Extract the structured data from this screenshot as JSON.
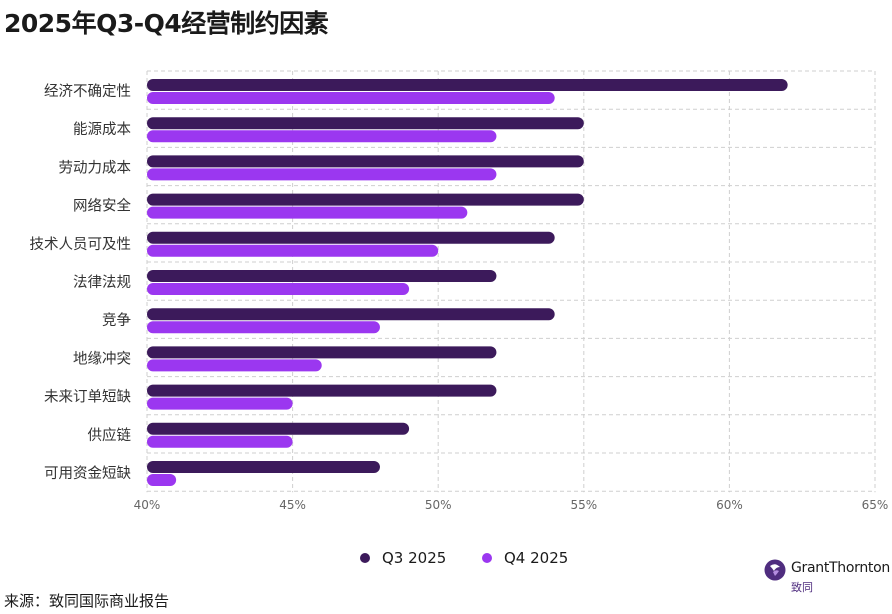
{
  "title": "2025年Q3-Q4经营制约因素",
  "source": "来源：致同国际商业报告",
  "logo": {
    "name": "GrantThornton",
    "sub": "致同"
  },
  "colors": {
    "q3": "#3c1a5b",
    "q4": "#9b37f0",
    "grid": "#cfcfcf",
    "axis_text": "#666666",
    "label_text": "#333333"
  },
  "chart_data": {
    "type": "bar",
    "orientation": "horizontal",
    "categories": [
      "经济不确定性",
      "能源成本",
      "劳动力成本",
      "网络安全",
      "技术人员可及性",
      "法律法规",
      "竞争",
      "地缘冲突",
      "未来订单短缺",
      "供应链",
      "可用资金短缺"
    ],
    "series": [
      {
        "name": "Q3 2025",
        "values": [
          62,
          55,
          55,
          55,
          54,
          52,
          54,
          52,
          52,
          49,
          48
        ]
      },
      {
        "name": "Q4 2025",
        "values": [
          54,
          52,
          52,
          51,
          50,
          49,
          48,
          46,
          45,
          45,
          41
        ]
      }
    ],
    "xlim": [
      40,
      65
    ],
    "xticks": [
      "40%",
      "45%",
      "50%",
      "55%",
      "60%",
      "65%"
    ],
    "xtick_values": [
      40,
      45,
      50,
      55,
      60,
      65
    ],
    "legend_position": "bottom",
    "grid": true
  }
}
